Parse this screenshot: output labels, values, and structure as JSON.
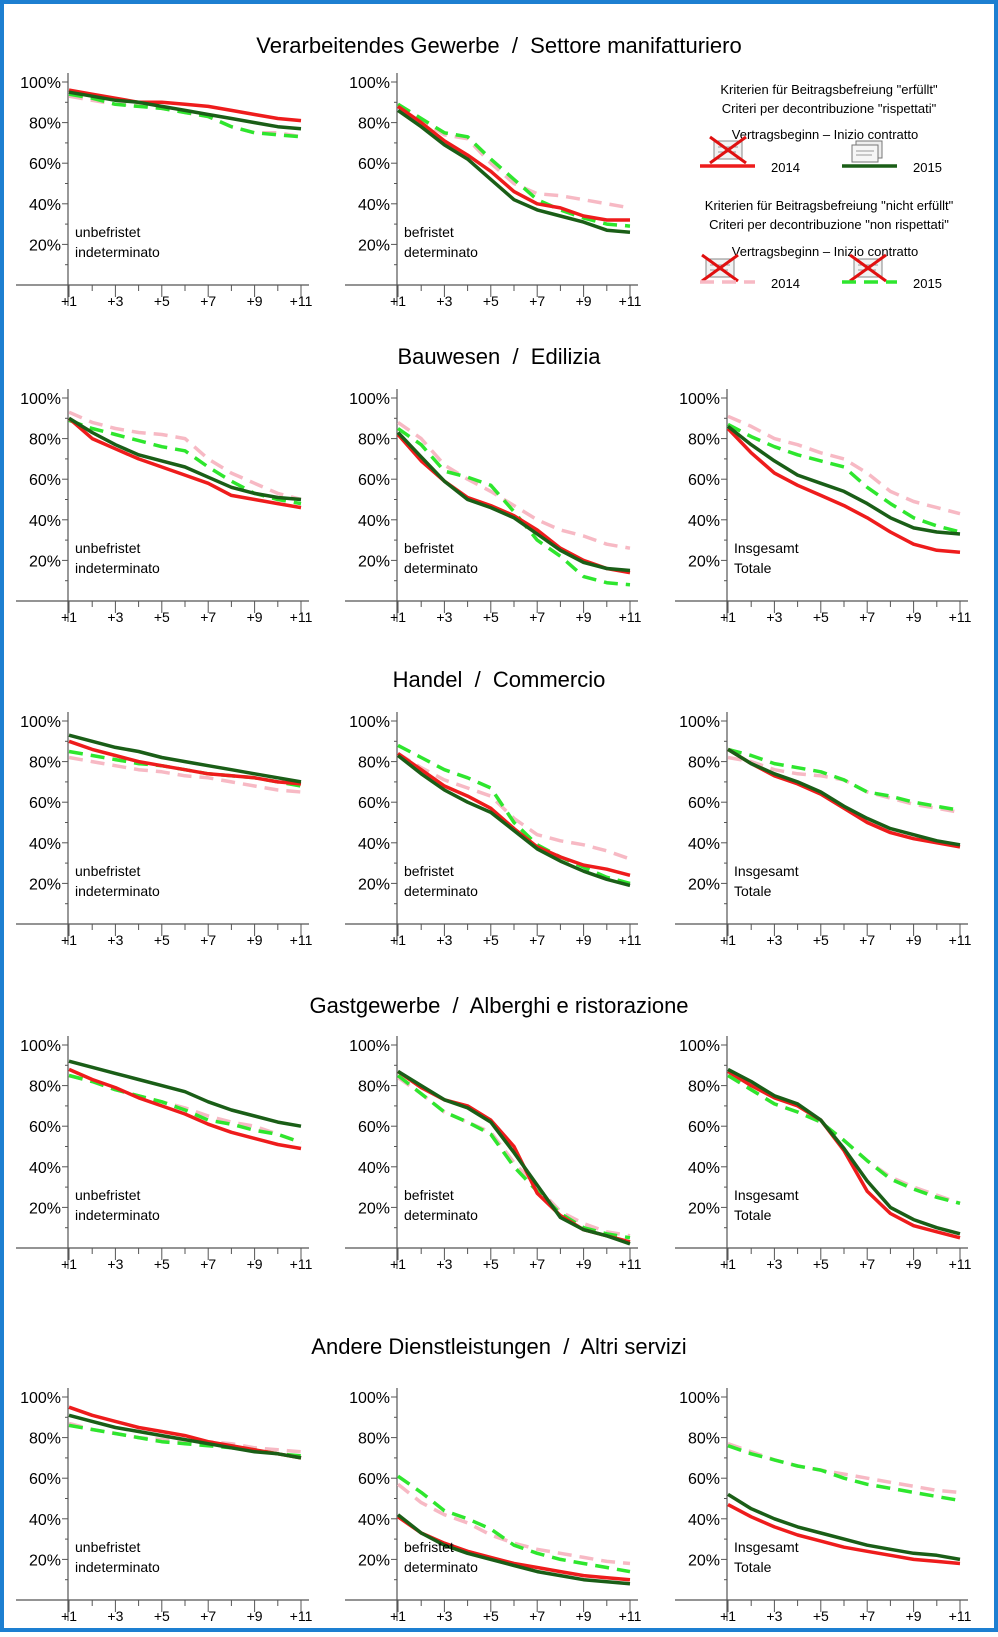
{
  "legend": {
    "fulfilled_de": "Kriterien für Beitragsbefreiung \"erfüllt\"",
    "fulfilled_it": "Criteri per decontribuzione \"rispettati\"",
    "not_fulfilled_de": "Kriterien für Beitragsbefreiung \"nicht erfüllt\"",
    "not_fulfilled_it": "Criteri per decontribuzione \"non rispettati\"",
    "start_label": "Vertragsbeginn – Inizio contratto",
    "year_2014": "2014",
    "year_2015": "2015"
  },
  "colors": {
    "fulfilled_2014": "#ee1c1c",
    "fulfilled_2015": "#1a5e17",
    "not_fulfilled_2014": "#f7b9c4",
    "not_fulfilled_2015": "#2ee62e",
    "frame": "#1d7fd1"
  },
  "chart_data": {
    "type": "line",
    "x_ticks": [
      "+1",
      "+3",
      "+5",
      "+7",
      "+9",
      "+11"
    ],
    "y_ticks": [
      "100%",
      "80%",
      "60%",
      "40%",
      "20%"
    ],
    "ylim": [
      0,
      1
    ],
    "x": [
      1,
      2,
      3,
      4,
      5,
      6,
      7,
      8,
      9,
      10,
      11
    ],
    "series_keys": [
      "not_fulfilled_2014",
      "not_fulfilled_2015",
      "fulfilled_2014",
      "fulfilled_2015"
    ],
    "sectors": [
      {
        "title": "Verarbeitendes Gewerbe  /  Settore manifatturiero",
        "panels": [
          {
            "label1": "unbefristet",
            "label2": "indeterminato",
            "series": {
              "fulfilled_2014": [
                0.96,
                0.94,
                0.92,
                0.9,
                0.9,
                0.89,
                0.88,
                0.86,
                0.84,
                0.82,
                0.81
              ],
              "fulfilled_2015": [
                0.95,
                0.93,
                0.91,
                0.9,
                0.88,
                0.86,
                0.84,
                0.82,
                0.8,
                0.78,
                0.77
              ],
              "not_fulfilled_2014": [
                0.93,
                0.91,
                0.89,
                0.89,
                0.87,
                0.85,
                0.83,
                0.78,
                0.75,
                0.75,
                0.73
              ],
              "not_fulfilled_2015": [
                0.94,
                0.92,
                0.89,
                0.88,
                0.87,
                0.85,
                0.83,
                0.78,
                0.75,
                0.74,
                0.73
              ]
            }
          },
          {
            "label1": "befristet",
            "label2": "determinato",
            "series": {
              "fulfilled_2014": [
                0.88,
                0.8,
                0.71,
                0.64,
                0.56,
                0.46,
                0.4,
                0.38,
                0.34,
                0.32,
                0.32
              ],
              "fulfilled_2015": [
                0.86,
                0.78,
                0.69,
                0.62,
                0.52,
                0.42,
                0.37,
                0.34,
                0.31,
                0.27,
                0.26
              ],
              "not_fulfilled_2014": [
                0.89,
                0.81,
                0.74,
                0.72,
                0.6,
                0.5,
                0.45,
                0.44,
                0.42,
                0.4,
                0.38
              ],
              "not_fulfilled_2015": [
                0.89,
                0.82,
                0.75,
                0.73,
                0.62,
                0.52,
                0.42,
                0.37,
                0.33,
                0.3,
                0.29
              ]
            }
          },
          null
        ]
      },
      {
        "title": "Bauwesen  /  Edilizia",
        "panels": [
          {
            "label1": "unbefristet",
            "label2": "indeterminato",
            "series": {
              "fulfilled_2014": [
                0.9,
                0.8,
                0.75,
                0.7,
                0.66,
                0.62,
                0.58,
                0.52,
                0.5,
                0.48,
                0.46
              ],
              "fulfilled_2015": [
                0.9,
                0.83,
                0.77,
                0.72,
                0.69,
                0.66,
                0.61,
                0.56,
                0.53,
                0.51,
                0.5
              ],
              "not_fulfilled_2014": [
                0.93,
                0.88,
                0.85,
                0.83,
                0.82,
                0.8,
                0.7,
                0.63,
                0.58,
                0.53,
                0.5
              ],
              "not_fulfilled_2015": [
                0.89,
                0.85,
                0.82,
                0.79,
                0.76,
                0.74,
                0.66,
                0.59,
                0.53,
                0.5,
                0.48
              ]
            }
          },
          {
            "label1": "befristet",
            "label2": "determinato",
            "series": {
              "fulfilled_2014": [
                0.82,
                0.69,
                0.59,
                0.51,
                0.47,
                0.42,
                0.35,
                0.26,
                0.2,
                0.16,
                0.14
              ],
              "fulfilled_2015": [
                0.83,
                0.71,
                0.59,
                0.5,
                0.46,
                0.41,
                0.33,
                0.25,
                0.19,
                0.16,
                0.15
              ],
              "not_fulfilled_2014": [
                0.88,
                0.8,
                0.67,
                0.6,
                0.54,
                0.47,
                0.4,
                0.35,
                0.32,
                0.28,
                0.26
              ],
              "not_fulfilled_2015": [
                0.85,
                0.77,
                0.64,
                0.61,
                0.57,
                0.44,
                0.3,
                0.22,
                0.12,
                0.09,
                0.08
              ]
            }
          },
          {
            "label1": "Insgesamt",
            "label2": "Totale",
            "series": {
              "fulfilled_2014": [
                0.85,
                0.73,
                0.63,
                0.57,
                0.52,
                0.47,
                0.41,
                0.34,
                0.28,
                0.25,
                0.24
              ],
              "fulfilled_2015": [
                0.86,
                0.77,
                0.69,
                0.62,
                0.58,
                0.54,
                0.48,
                0.41,
                0.36,
                0.34,
                0.33
              ],
              "not_fulfilled_2014": [
                0.91,
                0.86,
                0.8,
                0.77,
                0.73,
                0.7,
                0.63,
                0.54,
                0.49,
                0.46,
                0.43
              ],
              "not_fulfilled_2015": [
                0.87,
                0.81,
                0.76,
                0.72,
                0.69,
                0.66,
                0.56,
                0.48,
                0.41,
                0.37,
                0.34
              ]
            }
          }
        ]
      },
      {
        "title": "Handel  /  Commercio",
        "panels": [
          {
            "label1": "unbefristet",
            "label2": "indeterminato",
            "series": {
              "fulfilled_2014": [
                0.9,
                0.86,
                0.83,
                0.8,
                0.78,
                0.76,
                0.74,
                0.73,
                0.72,
                0.7,
                0.69
              ],
              "fulfilled_2015": [
                0.93,
                0.9,
                0.87,
                0.85,
                0.82,
                0.8,
                0.78,
                0.76,
                0.74,
                0.72,
                0.7
              ],
              "not_fulfilled_2014": [
                0.82,
                0.8,
                0.78,
                0.76,
                0.75,
                0.73,
                0.72,
                0.7,
                0.68,
                0.66,
                0.65
              ],
              "not_fulfilled_2015": [
                0.85,
                0.83,
                0.81,
                0.79,
                0.78,
                0.76,
                0.74,
                0.73,
                0.72,
                0.7,
                0.68
              ]
            }
          },
          {
            "label1": "befristet",
            "label2": "determinato",
            "series": {
              "fulfilled_2014": [
                0.84,
                0.76,
                0.68,
                0.63,
                0.57,
                0.47,
                0.38,
                0.33,
                0.29,
                0.27,
                0.24
              ],
              "fulfilled_2015": [
                0.83,
                0.74,
                0.66,
                0.6,
                0.55,
                0.46,
                0.37,
                0.31,
                0.26,
                0.22,
                0.19
              ],
              "not_fulfilled_2014": [
                0.84,
                0.77,
                0.71,
                0.67,
                0.63,
                0.52,
                0.44,
                0.41,
                0.39,
                0.36,
                0.32
              ],
              "not_fulfilled_2015": [
                0.88,
                0.82,
                0.76,
                0.72,
                0.67,
                0.5,
                0.39,
                0.33,
                0.28,
                0.23,
                0.2
              ]
            }
          },
          {
            "label1": "Insgesamt",
            "label2": "Totale",
            "series": {
              "fulfilled_2014": [
                0.86,
                0.79,
                0.73,
                0.69,
                0.64,
                0.57,
                0.5,
                0.45,
                0.42,
                0.4,
                0.38
              ],
              "fulfilled_2015": [
                0.86,
                0.79,
                0.74,
                0.7,
                0.65,
                0.58,
                0.52,
                0.47,
                0.44,
                0.41,
                0.39
              ],
              "not_fulfilled_2014": [
                0.82,
                0.8,
                0.76,
                0.74,
                0.73,
                0.71,
                0.65,
                0.62,
                0.59,
                0.57,
                0.55
              ],
              "not_fulfilled_2015": [
                0.86,
                0.83,
                0.79,
                0.77,
                0.75,
                0.71,
                0.65,
                0.63,
                0.6,
                0.58,
                0.56
              ]
            }
          }
        ]
      },
      {
        "title": "Gastgewerbe  /  Alberghi e ristorazione",
        "panels": [
          {
            "label1": "unbefristet",
            "label2": "indeterminato",
            "series": {
              "fulfilled_2014": [
                0.88,
                0.83,
                0.79,
                0.74,
                0.7,
                0.66,
                0.61,
                0.57,
                0.54,
                0.51,
                0.49
              ],
              "fulfilled_2015": [
                0.92,
                0.89,
                0.86,
                0.83,
                0.8,
                0.77,
                0.72,
                0.68,
                0.65,
                0.62,
                0.6
              ],
              "not_fulfilled_2014": [
                0.85,
                0.82,
                0.78,
                0.75,
                0.72,
                0.69,
                0.65,
                0.62,
                0.6,
                0.56,
                0.52
              ],
              "not_fulfilled_2015": [
                0.85,
                0.82,
                0.78,
                0.75,
                0.72,
                0.68,
                0.63,
                0.61,
                0.58,
                0.56,
                0.52
              ]
            }
          },
          {
            "label1": "befristet",
            "label2": "determinato",
            "series": {
              "fulfilled_2014": [
                0.87,
                0.79,
                0.73,
                0.7,
                0.63,
                0.5,
                0.27,
                0.16,
                0.09,
                0.06,
                0.03
              ],
              "fulfilled_2015": [
                0.87,
                0.8,
                0.73,
                0.69,
                0.62,
                0.47,
                0.31,
                0.15,
                0.09,
                0.06,
                0.02
              ],
              "not_fulfilled_2014": [
                0.84,
                0.76,
                0.67,
                0.62,
                0.57,
                0.42,
                0.3,
                0.18,
                0.12,
                0.08,
                0.06
              ],
              "not_fulfilled_2015": [
                0.85,
                0.76,
                0.67,
                0.62,
                0.56,
                0.4,
                0.28,
                0.17,
                0.1,
                0.07,
                0.05
              ]
            }
          },
          {
            "label1": "Insgesamt",
            "label2": "Totale",
            "series": {
              "fulfilled_2014": [
                0.87,
                0.8,
                0.74,
                0.7,
                0.63,
                0.48,
                0.28,
                0.17,
                0.11,
                0.08,
                0.05
              ],
              "fulfilled_2015": [
                0.88,
                0.82,
                0.75,
                0.71,
                0.63,
                0.49,
                0.33,
                0.2,
                0.14,
                0.1,
                0.07
              ],
              "not_fulfilled_2014": [
                0.85,
                0.78,
                0.71,
                0.67,
                0.62,
                0.53,
                0.43,
                0.35,
                0.3,
                0.26,
                0.22
              ],
              "not_fulfilled_2015": [
                0.85,
                0.78,
                0.71,
                0.67,
                0.62,
                0.53,
                0.43,
                0.34,
                0.29,
                0.25,
                0.22
              ]
            }
          }
        ]
      },
      {
        "title": "Andere Dienstleistungen  /  Altri servizi",
        "panels": [
          {
            "label1": "unbefristet",
            "label2": "indeterminato",
            "series": {
              "fulfilled_2014": [
                0.95,
                0.91,
                0.88,
                0.85,
                0.83,
                0.81,
                0.78,
                0.76,
                0.74,
                0.72,
                0.7
              ],
              "fulfilled_2015": [
                0.91,
                0.88,
                0.85,
                0.83,
                0.81,
                0.79,
                0.77,
                0.75,
                0.73,
                0.72,
                0.7
              ],
              "not_fulfilled_2014": [
                0.87,
                0.84,
                0.82,
                0.8,
                0.79,
                0.78,
                0.78,
                0.77,
                0.75,
                0.74,
                0.73
              ],
              "not_fulfilled_2015": [
                0.86,
                0.84,
                0.82,
                0.8,
                0.78,
                0.77,
                0.76,
                0.75,
                0.74,
                0.72,
                0.71
              ]
            }
          },
          {
            "label1": "befristet",
            "label2": "determinato",
            "series": {
              "fulfilled_2014": [
                0.41,
                0.33,
                0.28,
                0.24,
                0.21,
                0.18,
                0.16,
                0.14,
                0.12,
                0.11,
                0.1
              ],
              "fulfilled_2015": [
                0.42,
                0.33,
                0.27,
                0.23,
                0.2,
                0.17,
                0.14,
                0.12,
                0.1,
                0.09,
                0.08
              ],
              "not_fulfilled_2014": [
                0.57,
                0.48,
                0.42,
                0.38,
                0.32,
                0.28,
                0.25,
                0.23,
                0.21,
                0.19,
                0.18
              ],
              "not_fulfilled_2015": [
                0.61,
                0.53,
                0.44,
                0.4,
                0.35,
                0.27,
                0.23,
                0.2,
                0.18,
                0.16,
                0.14
              ]
            }
          },
          {
            "label1": "Insgesamt",
            "label2": "Totale",
            "series": {
              "fulfilled_2014": [
                0.47,
                0.41,
                0.36,
                0.32,
                0.29,
                0.26,
                0.24,
                0.22,
                0.2,
                0.19,
                0.18
              ],
              "fulfilled_2015": [
                0.52,
                0.45,
                0.4,
                0.36,
                0.33,
                0.3,
                0.27,
                0.25,
                0.23,
                0.22,
                0.2
              ],
              "not_fulfilled_2014": [
                0.77,
                0.73,
                0.69,
                0.66,
                0.64,
                0.62,
                0.6,
                0.58,
                0.56,
                0.54,
                0.53
              ],
              "not_fulfilled_2015": [
                0.76,
                0.72,
                0.69,
                0.66,
                0.64,
                0.6,
                0.57,
                0.55,
                0.53,
                0.51,
                0.49
              ]
            }
          }
        ]
      }
    ]
  }
}
